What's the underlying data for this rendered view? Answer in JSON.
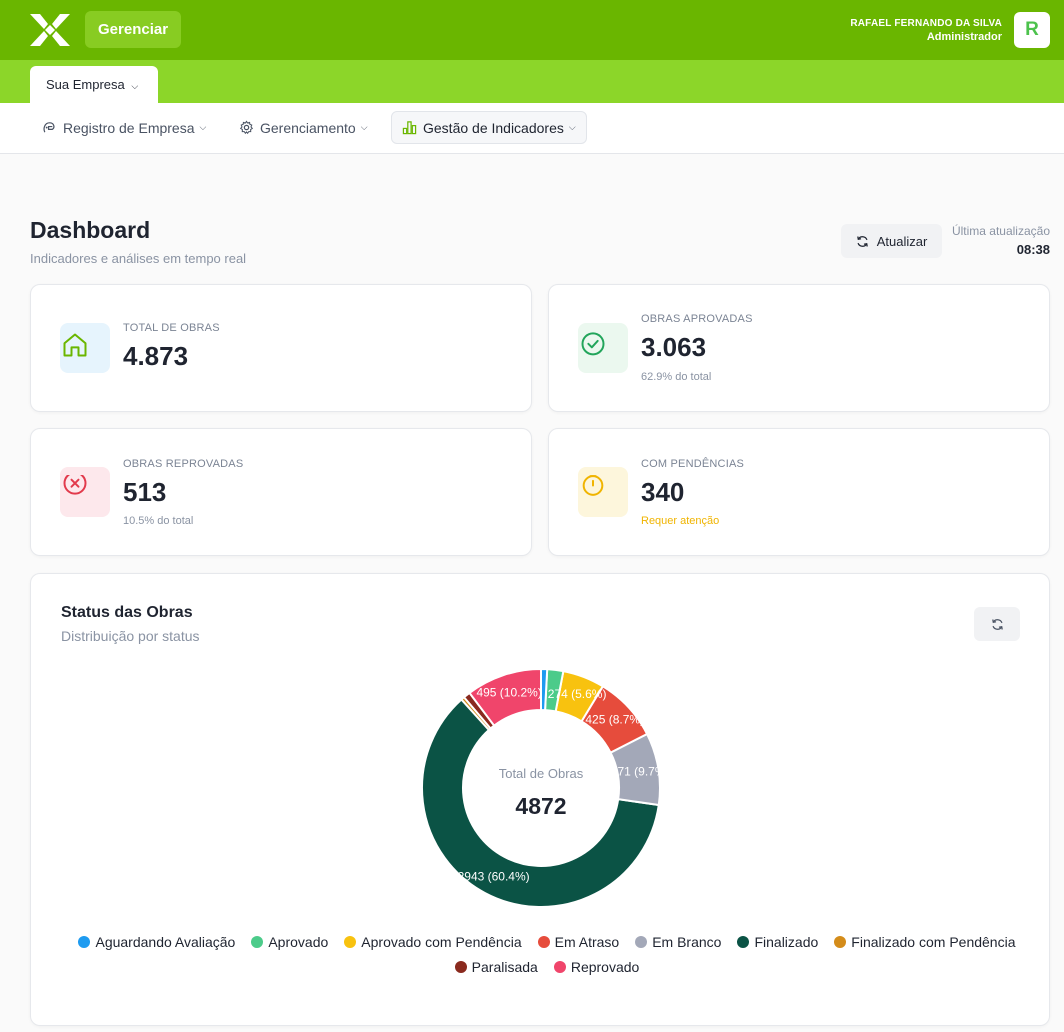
{
  "header": {
    "manage_label": "Gerenciar",
    "user_name": "RAFAEL FERNANDO DA SILVA",
    "user_role": "Administrador",
    "avatar_letter": "R"
  },
  "company_tab": {
    "label": "Sua Empresa"
  },
  "nav": {
    "items": [
      {
        "label": "Registro de Empresa",
        "icon": "building-icon"
      },
      {
        "label": "Gerenciamento",
        "icon": "gear-icon"
      },
      {
        "label": "Gestão de Indicadores",
        "icon": "chart-bars-icon"
      }
    ]
  },
  "dashboard": {
    "title": "Dashboard",
    "subtitle": "Indicadores e análises em tempo real",
    "refresh_label": "Atualizar",
    "last_update_label": "Última atualização",
    "last_update_time": "08:38"
  },
  "stats": [
    {
      "label": "TOTAL DE OBRAS",
      "value": "4.873",
      "note": "",
      "icon": "home-icon",
      "color": "#6ab600"
    },
    {
      "label": "OBRAS APROVADAS",
      "value": "3.063",
      "note": "62.9% do total",
      "icon": "check-circle-icon",
      "color": "#22a55b"
    },
    {
      "label": "OBRAS REPROVADAS",
      "value": "513",
      "note": "10.5% do total",
      "icon": "x-circle-icon",
      "color": "#e23a4c"
    },
    {
      "label": "COM PENDÊNCIAS",
      "value": "340",
      "note": "Requer atenção",
      "icon": "timer-icon",
      "color": "#f0b400"
    }
  ],
  "status_chart": {
    "title": "Status das Obras",
    "subtitle": "Distribuição por status",
    "center_label": "Total de Obras",
    "center_value": "4872"
  },
  "chart_data": {
    "type": "pie",
    "categories": [
      "Aguardando Avaliação",
      "Aprovado",
      "Aprovado com Pendência",
      "Em Atraso",
      "Em Branco",
      "Finalizado",
      "Finalizado com Pendência",
      "Paralisada",
      "Reprovado"
    ],
    "values": [
      40,
      105,
      274,
      425,
      471,
      2943,
      22,
      45,
      495
    ],
    "data_labels": [
      "",
      "",
      "274 (5.6%)",
      "425 (8.7%)",
      "471 (9.7%)",
      "2943 (60.4%)",
      "",
      "",
      "495 (10.2%)"
    ],
    "colors": [
      "#1e9bf0",
      "#4ccb8a",
      "#f8c20f",
      "#e64c3c",
      "#a3a8b8",
      "#0b5345",
      "#d48c1a",
      "#8a2a1e",
      "#f0456b"
    ],
    "total": 4872,
    "legend": "bottom"
  }
}
